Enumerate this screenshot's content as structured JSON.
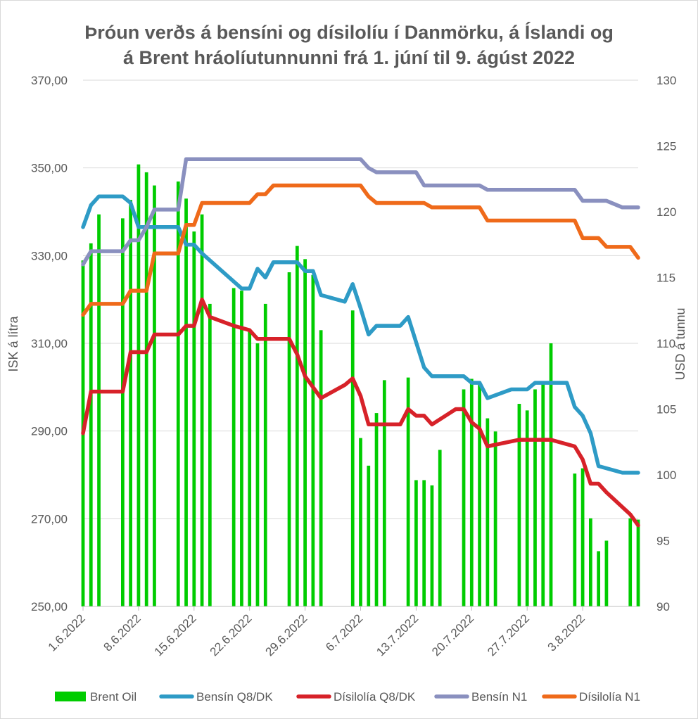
{
  "chart_data": {
    "type": "bar+line (combo, dual axis)",
    "title_lines": [
      "Þróun verðs á bensíni og dísilolíu í Danmörku, á Íslandi og",
      "á Brent hráolíutunnunni frá 1. júní til 9. ágúst 2022"
    ],
    "ylabel_left": "ISK á lítra",
    "ylabel_right": "USD á tunnu",
    "ylim_left": [
      250,
      370
    ],
    "ylim_right": [
      90,
      130
    ],
    "yticks_left": [
      "250,00",
      "270,00",
      "290,00",
      "310,00",
      "330,00",
      "350,00",
      "370,00"
    ],
    "yticks_right": [
      "90",
      "95",
      "100",
      "105",
      "110",
      "115",
      "120",
      "125",
      "130"
    ],
    "x_start": "2022-06-01",
    "x_end": "2022-08-10",
    "xticks": [
      "1.6.2022",
      "8.6.2022",
      "15.6.2022",
      "22.6.2022",
      "29.6.2022",
      "6.7.2022",
      "13.7.2022",
      "20.7.2022",
      "27.7.2022",
      "3.8.2022"
    ],
    "series": [
      {
        "name": "Brent Oil",
        "kind": "bar",
        "axis": "right",
        "color": "#00cc00",
        "points": [
          [
            0,
            116.3
          ],
          [
            1,
            117.6
          ],
          [
            2,
            119.8
          ],
          [
            5,
            119.5
          ],
          [
            6,
            120.9
          ],
          [
            7,
            123.6
          ],
          [
            8,
            123.0
          ],
          [
            9,
            122.0
          ],
          [
            12,
            122.3
          ],
          [
            13,
            121.0
          ],
          [
            14,
            118.5
          ],
          [
            15,
            119.8
          ],
          [
            16,
            113.0
          ],
          [
            19,
            114.2
          ],
          [
            20,
            114.0
          ],
          [
            21,
            111.0
          ],
          [
            22,
            110.0
          ],
          [
            23,
            113.0
          ],
          [
            26,
            115.4
          ],
          [
            27,
            117.4
          ],
          [
            28,
            116.4
          ],
          [
            29,
            115.2
          ],
          [
            30,
            111.0
          ],
          [
            34,
            112.5
          ],
          [
            35,
            102.8
          ],
          [
            36,
            100.7
          ],
          [
            37,
            104.7
          ],
          [
            38,
            107.2
          ],
          [
            41,
            107.4
          ],
          [
            42,
            99.6
          ],
          [
            43,
            99.6
          ],
          [
            44,
            99.2
          ],
          [
            45,
            101.9
          ],
          [
            48,
            106.5
          ],
          [
            49,
            107.3
          ],
          [
            50,
            107.1
          ],
          [
            51,
            104.3
          ],
          [
            52,
            103.3
          ],
          [
            55,
            105.4
          ],
          [
            56,
            104.9
          ],
          [
            57,
            106.5
          ],
          [
            58,
            107.0
          ],
          [
            59,
            110.0
          ],
          [
            62,
            100.1
          ],
          [
            63,
            100.5
          ],
          [
            64,
            96.7
          ],
          [
            65,
            94.2
          ],
          [
            66,
            95.0
          ],
          [
            69,
            96.7
          ],
          [
            70,
            96.6
          ]
        ]
      },
      {
        "name": "Bensín Q8/DK",
        "kind": "line",
        "axis": "left",
        "color": "#2e9bc6",
        "points": [
          [
            0,
            336.5
          ],
          [
            1,
            341.5
          ],
          [
            2,
            343.5
          ],
          [
            5,
            343.5
          ],
          [
            6,
            342
          ],
          [
            7,
            336.5
          ],
          [
            12,
            336.5
          ],
          [
            13,
            332.5
          ],
          [
            14,
            332.5
          ],
          [
            15,
            330.5
          ],
          [
            20,
            322.5
          ],
          [
            21,
            322.5
          ],
          [
            22,
            327
          ],
          [
            23,
            325
          ],
          [
            24,
            328.5
          ],
          [
            27,
            328.5
          ],
          [
            28,
            326.5
          ],
          [
            29,
            326.5
          ],
          [
            30,
            321
          ],
          [
            33,
            319.5
          ],
          [
            34,
            323.5
          ],
          [
            35,
            318
          ],
          [
            36,
            312
          ],
          [
            37,
            314
          ],
          [
            40,
            314
          ],
          [
            41,
            316
          ],
          [
            43,
            304.5
          ],
          [
            44,
            302.5
          ],
          [
            48,
            302.5
          ],
          [
            49,
            301
          ],
          [
            50,
            301
          ],
          [
            51,
            297.5
          ],
          [
            54,
            299.5
          ],
          [
            56,
            299.5
          ],
          [
            57,
            301
          ],
          [
            61,
            301
          ],
          [
            62,
            295.5
          ],
          [
            63,
            293.5
          ],
          [
            64,
            289.5
          ],
          [
            65,
            282
          ],
          [
            68,
            280.5
          ],
          [
            70,
            280.5
          ]
        ]
      },
      {
        "name": "Dísilolía Q8/DK",
        "kind": "line",
        "axis": "left",
        "color": "#d72229",
        "points": [
          [
            0,
            289.5
          ],
          [
            1,
            299
          ],
          [
            5,
            299
          ],
          [
            6,
            308
          ],
          [
            8,
            308
          ],
          [
            9,
            312
          ],
          [
            12,
            312
          ],
          [
            13,
            314
          ],
          [
            14,
            314
          ],
          [
            15,
            320
          ],
          [
            16,
            316
          ],
          [
            19,
            314
          ],
          [
            20,
            313.5
          ],
          [
            21,
            313
          ],
          [
            22,
            311
          ],
          [
            26,
            311
          ],
          [
            27,
            307.5
          ],
          [
            28,
            302.5
          ],
          [
            30,
            297.5
          ],
          [
            33,
            300.5
          ],
          [
            34,
            302
          ],
          [
            35,
            298
          ],
          [
            36,
            291.5
          ],
          [
            40,
            291.5
          ],
          [
            41,
            295
          ],
          [
            42,
            293.5
          ],
          [
            43,
            293.5
          ],
          [
            44,
            291.5
          ],
          [
            47,
            295
          ],
          [
            48,
            295
          ],
          [
            49,
            292
          ],
          [
            50,
            290.5
          ],
          [
            51,
            286.5
          ],
          [
            55,
            288
          ],
          [
            59,
            288
          ],
          [
            62,
            286.5
          ],
          [
            63,
            283.5
          ],
          [
            64,
            278
          ],
          [
            65,
            278
          ],
          [
            66,
            276
          ],
          [
            69,
            271
          ],
          [
            70,
            268.5
          ]
        ]
      },
      {
        "name": "Bensín N1",
        "kind": "line",
        "axis": "left",
        "color": "#8a90bf",
        "points": [
          [
            0,
            328
          ],
          [
            1,
            331
          ],
          [
            5,
            331
          ],
          [
            6,
            333.5
          ],
          [
            7,
            333.5
          ],
          [
            8,
            336.5
          ],
          [
            9,
            340.5
          ],
          [
            12,
            340.5
          ],
          [
            13,
            352
          ],
          [
            35,
            352
          ],
          [
            36,
            350
          ],
          [
            37,
            349
          ],
          [
            42,
            349
          ],
          [
            43,
            346
          ],
          [
            50,
            346
          ],
          [
            51,
            345
          ],
          [
            62,
            345
          ],
          [
            63,
            342.5
          ],
          [
            66,
            342.5
          ],
          [
            68,
            341
          ],
          [
            70,
            341
          ]
        ]
      },
      {
        "name": "Dísilolía N1",
        "kind": "line",
        "axis": "left",
        "color": "#ef6a1a",
        "points": [
          [
            0,
            316.5
          ],
          [
            1,
            319
          ],
          [
            5,
            319
          ],
          [
            6,
            322
          ],
          [
            8,
            322
          ],
          [
            9,
            330.5
          ],
          [
            12,
            330.5
          ],
          [
            13,
            337
          ],
          [
            14,
            337
          ],
          [
            15,
            342
          ],
          [
            21,
            342
          ],
          [
            22,
            344
          ],
          [
            23,
            344
          ],
          [
            24,
            346
          ],
          [
            35,
            346
          ],
          [
            36,
            343.5
          ],
          [
            37,
            342
          ],
          [
            43,
            342
          ],
          [
            44,
            341
          ],
          [
            50,
            341
          ],
          [
            51,
            338
          ],
          [
            62,
            338
          ],
          [
            63,
            334
          ],
          [
            65,
            334
          ],
          [
            66,
            332
          ],
          [
            69,
            332
          ],
          [
            70,
            329.5
          ]
        ]
      }
    ],
    "legend_position": "bottom"
  }
}
